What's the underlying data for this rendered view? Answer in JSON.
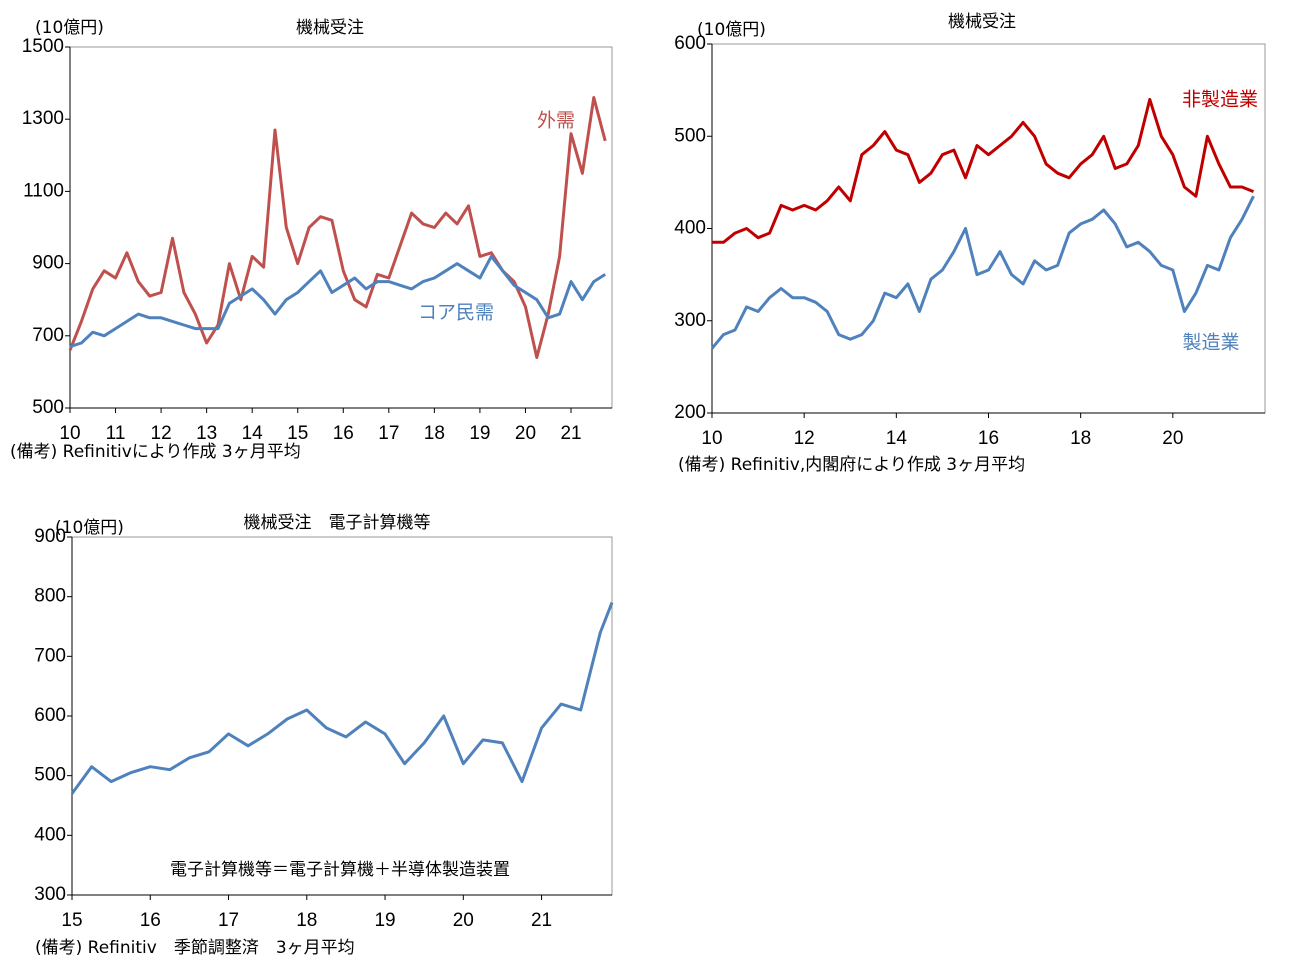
{
  "chart_data": [
    {
      "type": "line",
      "title": "機械受注",
      "unit": "(10億円)",
      "note": "(備考) Refinitivにより作成 3ヶ月平均",
      "x": [
        10,
        10.25,
        10.5,
        10.75,
        11,
        11.25,
        11.5,
        11.75,
        12,
        12.25,
        12.5,
        12.75,
        13,
        13.25,
        13.5,
        13.75,
        14,
        14.25,
        14.5,
        14.75,
        15,
        15.25,
        15.5,
        15.75,
        16,
        16.25,
        16.5,
        16.75,
        17,
        17.25,
        17.5,
        17.75,
        18,
        18.25,
        18.5,
        18.75,
        19,
        19.25,
        19.5,
        19.75,
        20,
        20.25,
        20.5,
        20.75,
        21,
        21.25,
        21.5,
        21.75
      ],
      "xlim": [
        10,
        21.9
      ],
      "xticks": [
        10,
        11,
        12,
        13,
        14,
        15,
        16,
        17,
        18,
        19,
        20,
        21
      ],
      "ylim": [
        500,
        1500
      ],
      "yticks": [
        500,
        700,
        900,
        1100,
        1300,
        1500
      ],
      "series": [
        {
          "name": "外需",
          "color": "#c0504d",
          "values": [
            660,
            740,
            830,
            880,
            860,
            930,
            850,
            810,
            820,
            970,
            820,
            760,
            680,
            730,
            900,
            800,
            920,
            890,
            1270,
            1000,
            900,
            1000,
            1030,
            1020,
            880,
            800,
            780,
            870,
            860,
            950,
            1040,
            1010,
            1000,
            1040,
            1010,
            1060,
            920,
            930,
            880,
            850,
            780,
            640,
            760,
            920,
            1260,
            1150,
            1360,
            1240
          ]
        },
        {
          "name": "コア民需",
          "color": "#4f81bd",
          "values": [
            670,
            680,
            710,
            700,
            720,
            740,
            760,
            750,
            750,
            740,
            730,
            720,
            720,
            720,
            790,
            810,
            830,
            800,
            760,
            800,
            820,
            850,
            880,
            820,
            840,
            860,
            830,
            850,
            850,
            840,
            830,
            850,
            860,
            880,
            900,
            880,
            860,
            920,
            880,
            840,
            820,
            800,
            750,
            760,
            850,
            800,
            850,
            870
          ]
        }
      ]
    },
    {
      "type": "line",
      "title": "機械受注",
      "unit": "(10億円)",
      "note": "(備考) Refinitiv,内閣府により作成 3ヶ月平均",
      "x": [
        10,
        10.25,
        10.5,
        10.75,
        11,
        11.25,
        11.5,
        11.75,
        12,
        12.25,
        12.5,
        12.75,
        13,
        13.25,
        13.5,
        13.75,
        14,
        14.25,
        14.5,
        14.75,
        15,
        15.25,
        15.5,
        15.75,
        16,
        16.25,
        16.5,
        16.75,
        17,
        17.25,
        17.5,
        17.75,
        18,
        18.25,
        18.5,
        18.75,
        19,
        19.25,
        19.5,
        19.75,
        20,
        20.25,
        20.5,
        20.75,
        21,
        21.25,
        21.5,
        21.75
      ],
      "xlim": [
        10,
        22
      ],
      "xticks": [
        10,
        12,
        14,
        16,
        18,
        20
      ],
      "ylim": [
        200,
        600
      ],
      "yticks": [
        200,
        300,
        400,
        500,
        600
      ],
      "series": [
        {
          "name": "非製造業",
          "color": "#c00000",
          "values": [
            385,
            385,
            395,
            400,
            390,
            395,
            425,
            420,
            425,
            420,
            430,
            445,
            430,
            480,
            490,
            505,
            485,
            480,
            450,
            460,
            480,
            485,
            455,
            490,
            480,
            490,
            500,
            515,
            500,
            470,
            460,
            455,
            470,
            480,
            500,
            465,
            470,
            490,
            540,
            500,
            480,
            445,
            435,
            500,
            470,
            445,
            445,
            440
          ]
        },
        {
          "name": "製造業",
          "color": "#4f81bd",
          "values": [
            270,
            285,
            290,
            315,
            310,
            325,
            335,
            325,
            325,
            320,
            310,
            285,
            280,
            285,
            300,
            330,
            325,
            340,
            310,
            345,
            355,
            375,
            400,
            350,
            355,
            375,
            350,
            340,
            365,
            355,
            360,
            395,
            405,
            410,
            420,
            405,
            380,
            385,
            375,
            360,
            355,
            310,
            330,
            360,
            355,
            390,
            410,
            435
          ]
        }
      ]
    },
    {
      "type": "line",
      "title": "機械受注　電子計算機等",
      "unit": "(10億円)",
      "annotation": "電子計算機等＝電子計算機＋半導体製造装置",
      "note": "(備考) Refinitiv　季節調整済　3ヶ月平均",
      "x": [
        15,
        15.25,
        15.5,
        15.75,
        16,
        16.25,
        16.5,
        16.75,
        17,
        17.25,
        17.5,
        17.75,
        18,
        18.25,
        18.5,
        18.75,
        19,
        19.25,
        19.5,
        19.75,
        20,
        20.25,
        20.5,
        20.75,
        21,
        21.25,
        21.5,
        21.75,
        21.9
      ],
      "xlim": [
        15,
        21.9
      ],
      "xticks": [
        15,
        16,
        17,
        18,
        19,
        20,
        21
      ],
      "ylim": [
        300,
        900
      ],
      "yticks": [
        300,
        400,
        500,
        600,
        700,
        800,
        900
      ],
      "color": "#4f81bd",
      "values": [
        470,
        515,
        490,
        505,
        515,
        510,
        530,
        540,
        570,
        550,
        570,
        595,
        610,
        580,
        565,
        590,
        570,
        520,
        555,
        600,
        520,
        560,
        555,
        490,
        580,
        620,
        610,
        740,
        790
      ]
    }
  ]
}
